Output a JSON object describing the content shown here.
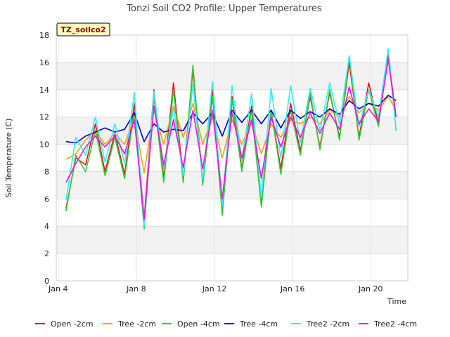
{
  "chart_data": {
    "type": "line",
    "title": "Tonzi Soil CO2 Profile: Upper Temperatures",
    "badge": "TZ_soilco2",
    "xlabel": "Time",
    "ylabel": "Soil Temperature (C)",
    "xlim": [
      3.9,
      21.9
    ],
    "ylim": [
      0,
      18
    ],
    "grid": true,
    "legend": "bottom",
    "x_ticks": [
      {
        "value": 4,
        "label": "Jan 4"
      },
      {
        "value": 8,
        "label": "Jan 8"
      },
      {
        "value": 12,
        "label": "Jan 12"
      },
      {
        "value": 16,
        "label": "Jan 16"
      },
      {
        "value": 20,
        "label": "Jan 20"
      }
    ],
    "y_ticks": [
      0,
      2,
      4,
      6,
      8,
      10,
      12,
      14,
      16,
      18
    ],
    "x_days": [
      4.4,
      4.9,
      5.4,
      5.9,
      6.4,
      6.9,
      7.4,
      7.9,
      8.4,
      8.9,
      9.4,
      9.9,
      10.4,
      10.9,
      11.4,
      11.9,
      12.4,
      12.9,
      13.4,
      13.9,
      14.4,
      14.9,
      15.4,
      15.9,
      16.4,
      16.9,
      17.4,
      17.9,
      18.4,
      18.9,
      19.4,
      19.9,
      20.4,
      20.9,
      21.3
    ],
    "series": [
      {
        "name": "Open -2cm",
        "color": "#e8141e",
        "values": [
          5.3,
          9.0,
          8.5,
          11.5,
          8.0,
          10.8,
          7.8,
          13.0,
          4.5,
          14.0,
          7.5,
          14.5,
          7.5,
          15.5,
          7.2,
          14.0,
          5.0,
          13.5,
          8.2,
          12.8,
          5.8,
          12.5,
          8.2,
          13.0,
          9.5,
          13.5,
          9.8,
          13.8,
          10.5,
          16.0,
          10.5,
          14.5,
          11.5,
          16.5,
          12.0
        ]
      },
      {
        "name": "Tree -2cm",
        "color": "#f5a200",
        "values": [
          8.9,
          9.3,
          10.3,
          11.0,
          10.0,
          10.8,
          10.0,
          12.0,
          7.9,
          12.5,
          10.0,
          12.8,
          10.5,
          13.0,
          10.0,
          12.0,
          9.0,
          11.8,
          10.0,
          11.6,
          9.3,
          11.5,
          10.5,
          11.8,
          11.5,
          12.0,
          11.5,
          12.5,
          12.0,
          13.5,
          12.3,
          13.0,
          12.5,
          13.5,
          12.5
        ]
      },
      {
        "name": "Open -4cm",
        "color": "#33cc33",
        "values": [
          5.1,
          9.2,
          8.0,
          11.0,
          7.7,
          10.5,
          7.5,
          12.5,
          3.8,
          13.5,
          7.2,
          14.0,
          7.2,
          15.8,
          7.0,
          13.5,
          4.8,
          13.3,
          8.0,
          12.5,
          5.4,
          12.5,
          7.8,
          12.5,
          9.2,
          13.8,
          9.6,
          14.0,
          10.3,
          16.5,
          10.3,
          14.0,
          11.3,
          17.0,
          11.0
        ]
      },
      {
        "name": "Tree -4cm",
        "color": "#0000c0",
        "values": [
          10.2,
          10.1,
          10.6,
          10.9,
          11.2,
          10.9,
          11.1,
          12.3,
          10.2,
          11.5,
          10.9,
          11.1,
          11.0,
          12.3,
          11.5,
          12.3,
          10.6,
          12.5,
          11.6,
          12.5,
          11.5,
          12.5,
          11.2,
          12.5,
          11.9,
          12.4,
          12.0,
          12.6,
          12.2,
          13.2,
          12.6,
          13.0,
          12.8,
          13.6,
          13.2
        ]
      },
      {
        "name": "Tree2 -2cm",
        "color": "#33eeff",
        "values": [
          5.9,
          10.5,
          9.2,
          12.0,
          8.7,
          11.5,
          8.6,
          13.8,
          4.0,
          13.9,
          8.2,
          12.7,
          7.7,
          14.4,
          7.4,
          14.6,
          5.5,
          14.3,
          8.8,
          13.7,
          6.1,
          14.1,
          9.0,
          14.3,
          10.1,
          14.1,
          11.0,
          14.5,
          11.5,
          16.5,
          11.3,
          14.0,
          12.0,
          17.0,
          11.1
        ]
      },
      {
        "name": "Tree2 -4cm",
        "color": "#ee11ee",
        "values": [
          7.2,
          8.6,
          9.8,
          10.6,
          9.8,
          10.6,
          9.3,
          11.8,
          4.5,
          12.8,
          8.5,
          11.8,
          8.3,
          12.5,
          8.2,
          12.5,
          6.0,
          12.3,
          9.0,
          11.8,
          7.5,
          12.0,
          9.8,
          12.0,
          10.5,
          12.3,
          10.8,
          12.3,
          11.1,
          14.2,
          11.5,
          12.6,
          11.7,
          16.2,
          12.0
        ]
      }
    ]
  }
}
